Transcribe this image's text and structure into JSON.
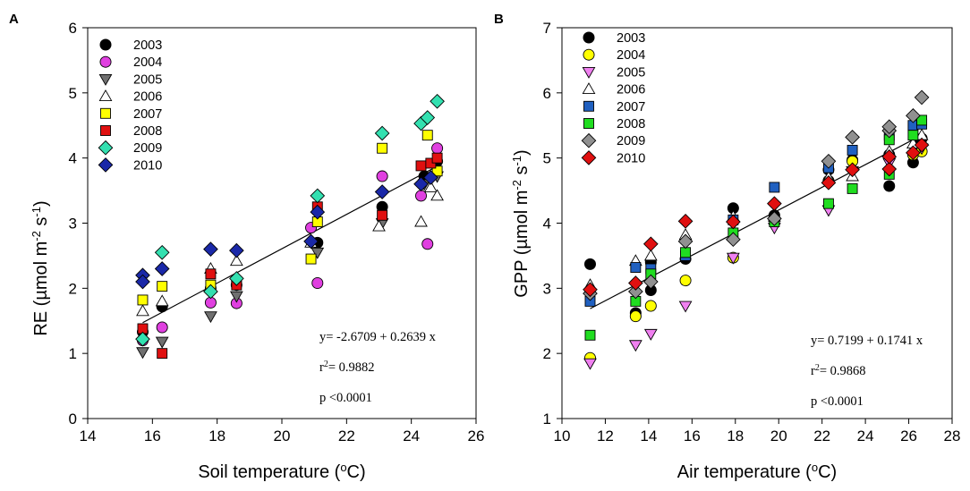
{
  "chart_data": [
    {
      "type": "scatter",
      "panel_label": "A",
      "title": "",
      "xlabel": "Soil temperature (oC)",
      "xlabel_parts": [
        "Soil temperature (",
        "o",
        "C)"
      ],
      "ylabel": "RE (µmol m-2 s-1)",
      "ylabel_parts": [
        "RE (µmol m",
        "-2",
        " s",
        "-1",
        ")"
      ],
      "xlim": [
        14,
        26
      ],
      "ylim": [
        0,
        6
      ],
      "xticks": [
        14,
        16,
        18,
        20,
        22,
        24,
        26
      ],
      "yticks": [
        0,
        1,
        2,
        3,
        4,
        5,
        6
      ],
      "grid": false,
      "legend_position": "top-left",
      "fit": {
        "intercept": -2.6709,
        "slope": 0.2639,
        "x_range": [
          15.7,
          24.8
        ]
      },
      "annotations": {
        "equation": "y= -2.6709 + 0.2639 x",
        "r2_prefix": "r",
        "r2_sup": "2",
        "r2_value": "= 0.9882",
        "p": "p <0.0001"
      },
      "series": [
        {
          "name": "2003",
          "marker": "circle",
          "color": "#000000",
          "points": [
            [
              15.7,
              1.33
            ],
            [
              16.3,
              1.72
            ],
            [
              17.8,
              2.0
            ],
            [
              18.6,
              2.05
            ],
            [
              21.1,
              2.7
            ],
            [
              23.1,
              3.25
            ],
            [
              24.4,
              3.72
            ],
            [
              24.8,
              3.95
            ]
          ]
        },
        {
          "name": "2004",
          "marker": "circle",
          "color": "#e040e0",
          "points": [
            [
              15.7,
              1.2
            ],
            [
              16.3,
              1.4
            ],
            [
              17.8,
              1.78
            ],
            [
              18.6,
              1.77
            ],
            [
              20.9,
              2.93
            ],
            [
              21.1,
              2.08
            ],
            [
              23.1,
              3.72
            ],
            [
              24.3,
              3.42
            ],
            [
              24.5,
              2.68
            ],
            [
              24.8,
              4.15
            ]
          ]
        },
        {
          "name": "2005",
          "marker": "triangle-down",
          "color": "#707070",
          "points": [
            [
              15.7,
              1.02
            ],
            [
              16.3,
              1.18
            ],
            [
              17.8,
              1.57
            ],
            [
              18.6,
              1.88
            ],
            [
              21.1,
              2.55
            ],
            [
              23.1,
              3.0
            ],
            [
              24.4,
              3.6
            ],
            [
              24.8,
              3.72
            ]
          ]
        },
        {
          "name": "2006",
          "marker": "triangle-up",
          "color": "#ffffff",
          "points": [
            [
              15.7,
              1.65
            ],
            [
              16.3,
              1.8
            ],
            [
              17.8,
              2.3
            ],
            [
              18.6,
              2.42
            ],
            [
              20.9,
              2.7
            ],
            [
              23.0,
              2.95
            ],
            [
              24.3,
              3.02
            ],
            [
              24.6,
              3.55
            ],
            [
              24.8,
              3.42
            ]
          ]
        },
        {
          "name": "2007",
          "marker": "square",
          "color": "#ffff00",
          "points": [
            [
              15.7,
              1.82
            ],
            [
              16.3,
              2.03
            ],
            [
              17.8,
              2.05
            ],
            [
              18.6,
              2.1
            ],
            [
              20.9,
              2.45
            ],
            [
              21.1,
              3.02
            ],
            [
              23.1,
              4.15
            ],
            [
              24.5,
              4.35
            ],
            [
              24.8,
              3.8
            ]
          ]
        },
        {
          "name": "2008",
          "marker": "square",
          "color": "#e01010",
          "points": [
            [
              15.7,
              1.38
            ],
            [
              16.3,
              1.0
            ],
            [
              17.8,
              2.22
            ],
            [
              18.6,
              2.05
            ],
            [
              21.1,
              3.25
            ],
            [
              23.1,
              3.12
            ],
            [
              24.3,
              3.88
            ],
            [
              24.6,
              3.92
            ],
            [
              24.8,
              4.0
            ]
          ]
        },
        {
          "name": "2009",
          "marker": "diamond",
          "color": "#33e0b0",
          "points": [
            [
              15.7,
              1.22
            ],
            [
              16.3,
              2.55
            ],
            [
              17.8,
              1.95
            ],
            [
              18.6,
              2.15
            ],
            [
              21.1,
              3.42
            ],
            [
              23.1,
              4.38
            ],
            [
              24.3,
              4.53
            ],
            [
              24.5,
              4.62
            ],
            [
              24.8,
              4.87
            ]
          ]
        },
        {
          "name": "2010",
          "marker": "diamond",
          "color": "#1a28a8",
          "points": [
            [
              15.7,
              2.2
            ],
            [
              15.7,
              2.1
            ],
            [
              16.3,
              2.3
            ],
            [
              17.8,
              2.6
            ],
            [
              18.6,
              2.58
            ],
            [
              20.9,
              2.72
            ],
            [
              21.1,
              3.17
            ],
            [
              23.1,
              3.48
            ],
            [
              24.3,
              3.6
            ],
            [
              24.6,
              3.7
            ]
          ]
        }
      ]
    },
    {
      "type": "scatter",
      "panel_label": "B",
      "title": "",
      "xlabel": "Air temperature (oC)",
      "xlabel_parts": [
        "Air temperature (",
        "o",
        "C)"
      ],
      "ylabel": "GPP (µmol m-2 s-1)",
      "ylabel_parts": [
        "GPP (µmol m",
        "-2",
        " s",
        "-1",
        ")"
      ],
      "xlim": [
        10,
        28
      ],
      "ylim": [
        1,
        7
      ],
      "xticks": [
        10,
        12,
        14,
        16,
        18,
        20,
        22,
        24,
        26,
        28
      ],
      "yticks": [
        1,
        2,
        3,
        4,
        5,
        6,
        7
      ],
      "grid": false,
      "legend_position": "top-left",
      "fit": {
        "intercept": 0.7199,
        "slope": 0.1741,
        "x_range": [
          11.3,
          26.6
        ]
      },
      "annotations": {
        "equation": "y= 0.7199 + 0.1741 x",
        "r2_prefix": "r",
        "r2_sup": "2",
        "r2_value": "= 0.9868",
        "p": "p <0.0001"
      },
      "series": [
        {
          "name": "2003",
          "marker": "circle",
          "color": "#000000",
          "points": [
            [
              11.3,
              3.37
            ],
            [
              13.4,
              2.62
            ],
            [
              14.1,
              2.97
            ],
            [
              14.1,
              3.4
            ],
            [
              15.7,
              3.45
            ],
            [
              17.9,
              4.23
            ],
            [
              19.8,
              4.12
            ],
            [
              22.3,
              4.82
            ],
            [
              23.4,
              4.97
            ],
            [
              25.1,
              4.57
            ],
            [
              25.1,
              5.05
            ],
            [
              26.2,
              4.93
            ],
            [
              26.4,
              5.22
            ],
            [
              26.6,
              5.3
            ]
          ]
        },
        {
          "name": "2004",
          "marker": "circle",
          "color": "#ffff00",
          "points": [
            [
              11.3,
              1.93
            ],
            [
              13.4,
              2.57
            ],
            [
              14.1,
              2.73
            ],
            [
              15.7,
              3.12
            ],
            [
              17.9,
              3.47
            ],
            [
              19.8,
              4.05
            ],
            [
              22.3,
              4.65
            ],
            [
              23.4,
              4.95
            ],
            [
              25.1,
              5.0
            ],
            [
              26.2,
              5.05
            ],
            [
              26.6,
              5.1
            ]
          ]
        },
        {
          "name": "2005",
          "marker": "triangle-down",
          "color": "#f080f0",
          "points": [
            [
              11.3,
              1.85
            ],
            [
              13.4,
              2.13
            ],
            [
              14.1,
              2.3
            ],
            [
              15.7,
              2.73
            ],
            [
              17.9,
              3.47
            ],
            [
              19.8,
              3.93
            ],
            [
              22.3,
              4.2
            ],
            [
              23.4,
              4.8
            ],
            [
              25.1,
              4.92
            ],
            [
              26.6,
              5.15
            ]
          ]
        },
        {
          "name": "2006",
          "marker": "triangle-up",
          "color": "#ffffff",
          "points": [
            [
              11.3,
              3.05
            ],
            [
              13.4,
              3.42
            ],
            [
              14.1,
              3.5
            ],
            [
              15.7,
              3.82
            ],
            [
              17.9,
              4.1
            ],
            [
              19.8,
              4.1
            ],
            [
              22.3,
              4.7
            ],
            [
              23.4,
              4.72
            ],
            [
              25.1,
              5.1
            ],
            [
              26.2,
              5.22
            ],
            [
              26.6,
              5.35
            ]
          ]
        },
        {
          "name": "2007",
          "marker": "square",
          "color": "#2060c0",
          "points": [
            [
              11.3,
              2.8
            ],
            [
              13.4,
              3.32
            ],
            [
              14.1,
              3.3
            ],
            [
              15.7,
              3.5
            ],
            [
              17.9,
              4.05
            ],
            [
              19.8,
              4.55
            ],
            [
              22.3,
              4.85
            ],
            [
              23.4,
              5.12
            ],
            [
              25.1,
              5.35
            ],
            [
              26.2,
              5.5
            ],
            [
              26.6,
              5.52
            ]
          ]
        },
        {
          "name": "2008",
          "marker": "square",
          "color": "#20dd20",
          "points": [
            [
              11.3,
              2.28
            ],
            [
              13.4,
              2.8
            ],
            [
              14.1,
              3.22
            ],
            [
              15.7,
              3.55
            ],
            [
              17.9,
              3.85
            ],
            [
              19.8,
              4.02
            ],
            [
              22.3,
              4.3
            ],
            [
              23.4,
              4.53
            ],
            [
              25.1,
              4.75
            ],
            [
              25.1,
              5.28
            ],
            [
              26.2,
              5.35
            ],
            [
              26.6,
              5.58
            ]
          ]
        },
        {
          "name": "2009",
          "marker": "diamond",
          "color": "#909090",
          "points": [
            [
              11.3,
              2.92
            ],
            [
              13.4,
              2.95
            ],
            [
              14.1,
              3.1
            ],
            [
              15.7,
              3.72
            ],
            [
              17.9,
              3.75
            ],
            [
              19.8,
              4.07
            ],
            [
              22.3,
              4.95
            ],
            [
              23.4,
              5.32
            ],
            [
              25.1,
              5.42
            ],
            [
              25.1,
              5.48
            ],
            [
              26.2,
              5.65
            ],
            [
              26.6,
              5.93
            ]
          ]
        },
        {
          "name": "2010",
          "marker": "diamond",
          "color": "#e01010",
          "points": [
            [
              11.3,
              2.98
            ],
            [
              13.4,
              3.08
            ],
            [
              14.1,
              3.68
            ],
            [
              15.7,
              4.03
            ],
            [
              17.9,
              4.02
            ],
            [
              19.8,
              4.3
            ],
            [
              22.3,
              4.62
            ],
            [
              23.4,
              4.82
            ],
            [
              25.1,
              4.83
            ],
            [
              25.1,
              5.02
            ],
            [
              26.2,
              5.08
            ],
            [
              26.6,
              5.2
            ]
          ]
        }
      ]
    }
  ]
}
